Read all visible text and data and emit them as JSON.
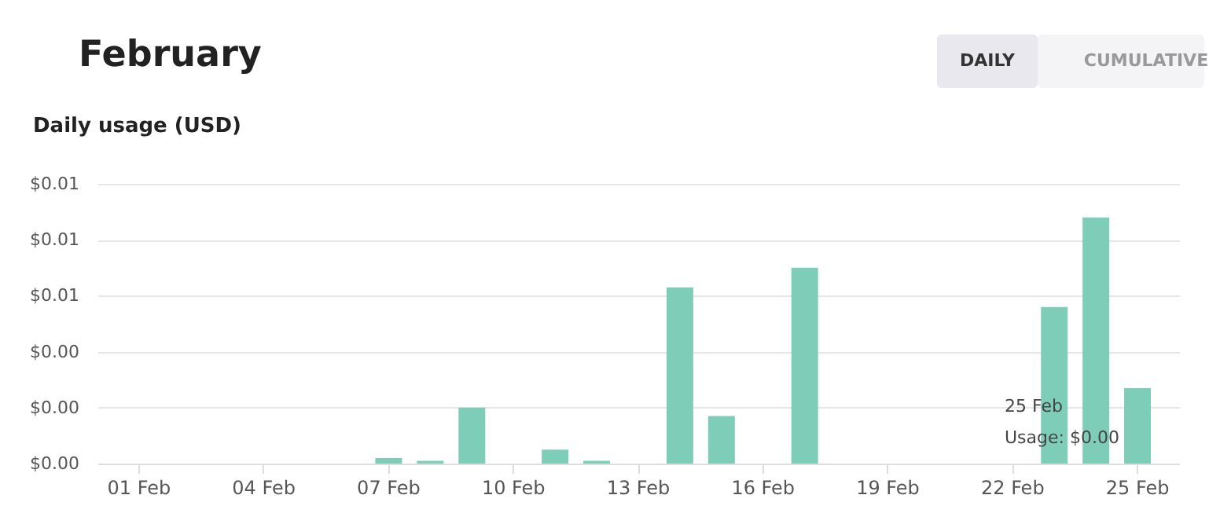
{
  "chart_data": {
    "type": "bar",
    "title": "February",
    "subtitle": "Daily usage (USD)",
    "categories": [
      "01 Feb",
      null,
      null,
      "04 Feb",
      null,
      null,
      "07 Feb",
      null,
      null,
      "10 Feb",
      null,
      null,
      "13 Feb",
      null,
      null,
      "16 Feb",
      null,
      null,
      "19 Feb",
      null,
      null,
      "22 Feb",
      null,
      null,
      "25 Feb"
    ],
    "values": [
      0,
      0,
      0,
      0,
      0,
      0,
      0.0002,
      0.0001,
      0.002,
      0,
      0.0005,
      0.0001,
      0,
      0.0063,
      0.0017,
      0,
      0.007,
      0,
      0,
      0,
      0,
      0,
      0.0056,
      0.0088,
      0.0027
    ],
    "color": "#7ecdb9",
    "ylim": [
      0,
      0.01
    ],
    "yticks": [
      {
        "value": 0,
        "label": "$0.00"
      },
      {
        "value": 0.002,
        "label": "$0.00"
      },
      {
        "value": 0.004,
        "label": "$0.00"
      },
      {
        "value": 0.006,
        "label": "$0.01"
      },
      {
        "value": 0.008,
        "label": "$0.01"
      },
      {
        "value": 0.01,
        "label": "$0.01"
      }
    ],
    "grid": "y",
    "annotations": [
      "DAILY",
      "CUMULATIVE",
      "25 Feb",
      "Usage: $0.00"
    ]
  }
}
